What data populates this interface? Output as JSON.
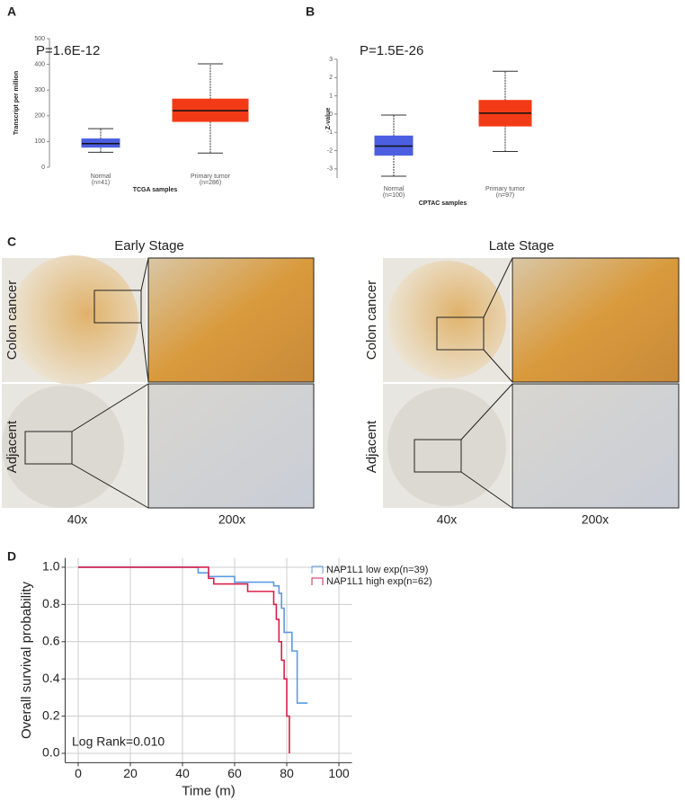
{
  "panel_labels": [
    "A",
    "B",
    "C",
    "D"
  ],
  "ihc": {
    "stages": [
      "Early Stage",
      "Late Stage"
    ],
    "rows": [
      "Colon cancer",
      "Adjacent"
    ],
    "magnifications": [
      "40x",
      "200x"
    ]
  },
  "chart_data": [
    {
      "type": "box",
      "annotation": "P=1.6E-12",
      "ylabel": "Transcript per million",
      "xlabel": "TCGA samples",
      "categories": [
        "Normal",
        "Primary tumor"
      ],
      "category_notes": [
        "(n=41)",
        "(n=286)"
      ],
      "colors": [
        "#4b5fe0",
        "#f23b16"
      ],
      "boxes": [
        {
          "min": 58,
          "q1": 78,
          "median": 92,
          "q3": 110,
          "max": 150
        },
        {
          "min": 55,
          "q1": 178,
          "median": 220,
          "q3": 265,
          "max": 402
        }
      ],
      "ylim": [
        0,
        500
      ],
      "yticks": [
        0,
        100,
        200,
        300,
        400,
        500
      ]
    },
    {
      "type": "box",
      "annotation": "P=1.5E-26",
      "ylabel": "Z-value",
      "xlabel": "CPTAC samples",
      "categories": [
        "Normal",
        "Primary tumor"
      ],
      "category_notes": [
        "(n=100)",
        "(n=97)"
      ],
      "colors": [
        "#4b5fe0",
        "#f23b16"
      ],
      "boxes": [
        {
          "min": -3.4,
          "q1": -2.25,
          "median": -1.75,
          "q3": -1.2,
          "max": -0.05
        },
        {
          "min": -2.05,
          "q1": -0.65,
          "median": 0.05,
          "q3": 0.75,
          "max": 2.35
        }
      ],
      "ylim": [
        -3.5,
        3
      ],
      "yticks": [
        -3,
        -2,
        -1,
        0,
        1,
        2,
        3
      ]
    },
    {
      "type": "step",
      "annotation": "Log Rank=0.010",
      "xlabel": "Time (m)",
      "ylabel": "Overall survival probability",
      "xlim": [
        -5,
        105
      ],
      "xticks": [
        0,
        20,
        40,
        60,
        80,
        100
      ],
      "ylim": [
        -0.05,
        1.05
      ],
      "yticks": [
        {
          "value": 0,
          "label": "0.0"
        },
        0.2,
        0.4,
        0.6,
        0.8,
        {
          "value": 1,
          "label": "1.0"
        }
      ],
      "grid": true,
      "series": [
        {
          "name": "NAP1L1 low exp(n=39)",
          "color": "#5b9be0",
          "x": [
            0,
            46,
            50,
            60,
            75,
            77,
            78,
            79,
            82,
            84,
            88
          ],
          "values": [
            1.0,
            0.97,
            0.95,
            0.92,
            0.9,
            0.86,
            0.78,
            0.65,
            0.55,
            0.27,
            0.27
          ]
        },
        {
          "name": "NAP1L1 high exp(n=62)",
          "color": "#d6204a",
          "x": [
            0,
            50,
            52,
            65,
            75,
            76,
            77,
            78,
            79,
            80,
            81
          ],
          "values": [
            1.0,
            0.94,
            0.91,
            0.87,
            0.8,
            0.72,
            0.6,
            0.5,
            0.4,
            0.2,
            0.0
          ]
        }
      ]
    }
  ]
}
